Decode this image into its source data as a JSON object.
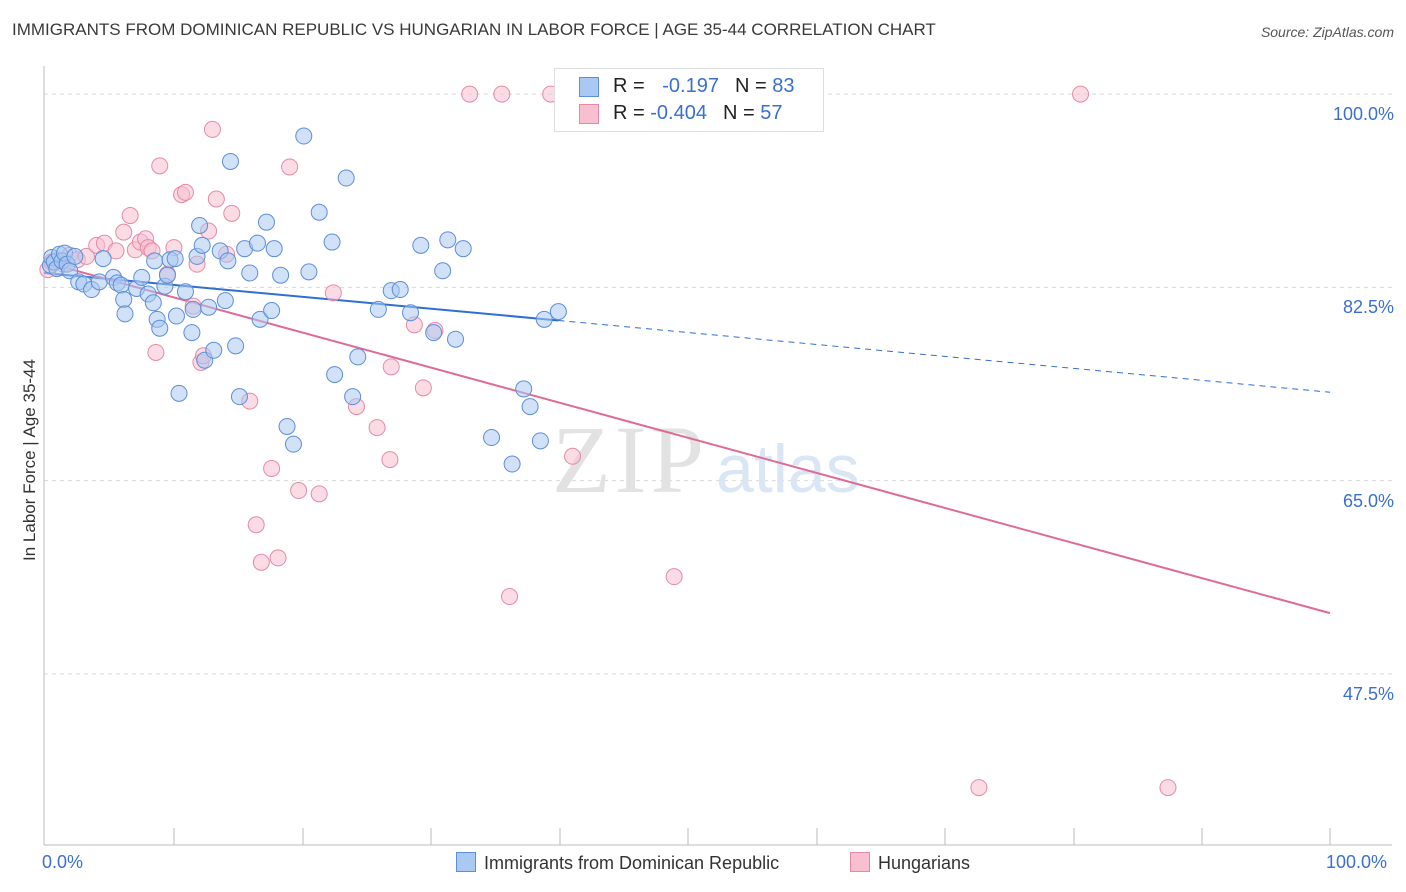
{
  "title": "IMMIGRANTS FROM DOMINICAN REPUBLIC VS HUNGARIAN IN LABOR FORCE | AGE 35-44 CORRELATION CHART",
  "source": "Source: ZipAtlas.com",
  "watermark": {
    "zip": "ZIP",
    "atlas": "atlas"
  },
  "colors": {
    "blue_fill": "#a9c8f2",
    "blue_stroke": "#5b8fd8",
    "blue_line": "#2f6fd0",
    "pink_fill": "#f7bfd0",
    "pink_stroke": "#e48aa8",
    "pink_line": "#e06a96",
    "grid": "#d9d9d9",
    "axis_label": "#3a6fd1"
  },
  "legend_top": {
    "rows": [
      {
        "r_label": "R = ",
        "r_value": "-0.197",
        "n_label": "N = ",
        "n_value": "83"
      },
      {
        "r_label": "R = ",
        "r_value": "-0.404",
        "n_label": "N = ",
        "n_value": "57"
      }
    ]
  },
  "legend_bottom": {
    "items": [
      "Immigrants from Dominican Republic",
      "Hungarians"
    ]
  },
  "chart_data": {
    "type": "scatter",
    "title": "IMMIGRANTS FROM DOMINICAN REPUBLIC VS HUNGARIAN IN LABOR FORCE | AGE 35-44 CORRELATION CHART",
    "xlabel": "",
    "ylabel": "In Labor Force | Age 35-44",
    "xlim": [
      0,
      100
    ],
    "ylim": [
      32,
      102
    ],
    "x_tick_labels": [
      "0.0%",
      "100.0%"
    ],
    "y_ticks": [
      47.5,
      65.0,
      82.5,
      100.0
    ],
    "y_tick_labels": [
      "47.5%",
      "65.0%",
      "82.5%",
      "100.0%"
    ],
    "grid": true,
    "series": [
      {
        "name": "Immigrants from Dominican Republic",
        "R": -0.197,
        "N": 83,
        "trend": {
          "x0": 0,
          "y0": 83.8,
          "x1": 40,
          "y1": 79.5,
          "x_dash_end": 100,
          "y_dash_end": 73.0
        },
        "points": [
          [
            0.5,
            84.5
          ],
          [
            0.6,
            85.2
          ],
          [
            0.8,
            84.8
          ],
          [
            1.0,
            84.2
          ],
          [
            1.2,
            85.5
          ],
          [
            1.4,
            84.9
          ],
          [
            1.6,
            85.6
          ],
          [
            1.8,
            84.6
          ],
          [
            2.0,
            84.0
          ],
          [
            2.4,
            85.3
          ],
          [
            2.7,
            83.0
          ],
          [
            3.1,
            82.8
          ],
          [
            3.7,
            82.3
          ],
          [
            4.3,
            83.0
          ],
          [
            4.6,
            85.1
          ],
          [
            5.4,
            83.4
          ],
          [
            5.7,
            82.9
          ],
          [
            6.0,
            82.7
          ],
          [
            6.2,
            81.4
          ],
          [
            6.3,
            80.1
          ],
          [
            7.2,
            82.4
          ],
          [
            7.6,
            83.4
          ],
          [
            8.1,
            81.9
          ],
          [
            8.5,
            81.1
          ],
          [
            8.6,
            84.9
          ],
          [
            8.8,
            79.6
          ],
          [
            9.0,
            78.8
          ],
          [
            9.4,
            82.6
          ],
          [
            9.6,
            83.6
          ],
          [
            9.8,
            85.0
          ],
          [
            10.2,
            85.1
          ],
          [
            10.3,
            79.9
          ],
          [
            10.5,
            72.9
          ],
          [
            11.0,
            82.1
          ],
          [
            11.5,
            78.4
          ],
          [
            11.6,
            80.5
          ],
          [
            11.9,
            85.3
          ],
          [
            12.1,
            88.1
          ],
          [
            12.3,
            86.3
          ],
          [
            12.5,
            75.9
          ],
          [
            12.8,
            80.7
          ],
          [
            13.2,
            76.8
          ],
          [
            13.7,
            85.8
          ],
          [
            14.1,
            81.3
          ],
          [
            14.3,
            84.9
          ],
          [
            14.5,
            93.9
          ],
          [
            14.9,
            77.2
          ],
          [
            15.2,
            72.6
          ],
          [
            15.6,
            86.0
          ],
          [
            16.0,
            83.8
          ],
          [
            16.6,
            86.5
          ],
          [
            16.8,
            79.6
          ],
          [
            17.3,
            88.4
          ],
          [
            17.7,
            80.4
          ],
          [
            17.9,
            86.0
          ],
          [
            18.4,
            83.6
          ],
          [
            18.9,
            69.9
          ],
          [
            19.4,
            68.3
          ],
          [
            20.2,
            96.2
          ],
          [
            20.6,
            83.9
          ],
          [
            21.4,
            89.3
          ],
          [
            22.4,
            86.6
          ],
          [
            22.6,
            74.6
          ],
          [
            23.5,
            92.4
          ],
          [
            24.0,
            72.6
          ],
          [
            24.4,
            76.2
          ],
          [
            26.0,
            80.5
          ],
          [
            27.0,
            82.2
          ],
          [
            27.7,
            82.3
          ],
          [
            28.5,
            80.2
          ],
          [
            29.3,
            86.3
          ],
          [
            30.3,
            78.4
          ],
          [
            31.0,
            84.0
          ],
          [
            31.4,
            86.8
          ],
          [
            32.0,
            77.8
          ],
          [
            32.6,
            86.0
          ],
          [
            34.8,
            68.9
          ],
          [
            36.4,
            66.5
          ],
          [
            37.3,
            73.3
          ],
          [
            37.8,
            71.7
          ],
          [
            38.6,
            68.6
          ],
          [
            38.9,
            79.6
          ],
          [
            40.0,
            80.3
          ]
        ]
      },
      {
        "name": "Hungarians",
        "R": -0.404,
        "N": 57,
        "trend": {
          "x0": 0,
          "y0": 84.8,
          "x1": 100,
          "y1": 53.0
        },
        "points": [
          [
            0.3,
            84.1
          ],
          [
            0.6,
            84.8
          ],
          [
            1.0,
            85.0
          ],
          [
            1.5,
            84.6
          ],
          [
            2.0,
            85.4
          ],
          [
            2.6,
            85.0
          ],
          [
            3.3,
            85.3
          ],
          [
            4.1,
            86.3
          ],
          [
            4.7,
            86.5
          ],
          [
            5.6,
            85.8
          ],
          [
            6.2,
            87.5
          ],
          [
            6.7,
            89.0
          ],
          [
            7.1,
            85.9
          ],
          [
            7.5,
            86.6
          ],
          [
            7.9,
            86.9
          ],
          [
            8.1,
            86.1
          ],
          [
            8.4,
            85.8
          ],
          [
            8.7,
            76.6
          ],
          [
            9.0,
            93.5
          ],
          [
            9.6,
            83.7
          ],
          [
            10.1,
            86.1
          ],
          [
            10.7,
            90.9
          ],
          [
            11.0,
            91.1
          ],
          [
            11.6,
            80.8
          ],
          [
            11.9,
            84.6
          ],
          [
            12.2,
            75.7
          ],
          [
            12.4,
            76.3
          ],
          [
            12.8,
            87.6
          ],
          [
            13.1,
            96.8
          ],
          [
            13.4,
            90.5
          ],
          [
            14.2,
            85.5
          ],
          [
            14.6,
            89.2
          ],
          [
            16.0,
            72.2
          ],
          [
            16.5,
            61.0
          ],
          [
            16.9,
            57.6
          ],
          [
            17.7,
            66.1
          ],
          [
            18.2,
            58.0
          ],
          [
            19.1,
            93.4
          ],
          [
            19.8,
            64.1
          ],
          [
            21.4,
            63.8
          ],
          [
            22.5,
            82.0
          ],
          [
            24.3,
            71.7
          ],
          [
            25.9,
            69.8
          ],
          [
            26.9,
            66.9
          ],
          [
            27.0,
            75.3
          ],
          [
            28.8,
            79.1
          ],
          [
            29.5,
            73.4
          ],
          [
            30.4,
            78.6
          ],
          [
            33.1,
            100.0
          ],
          [
            35.6,
            100.0
          ],
          [
            36.2,
            54.5
          ],
          [
            39.4,
            100.0
          ],
          [
            41.1,
            67.2
          ],
          [
            49.0,
            56.3
          ],
          [
            72.7,
            37.2
          ],
          [
            80.6,
            100.0
          ],
          [
            87.4,
            37.2
          ]
        ]
      }
    ]
  },
  "x_axis": {
    "left_label": "0.0%",
    "right_label": "100.0%"
  }
}
